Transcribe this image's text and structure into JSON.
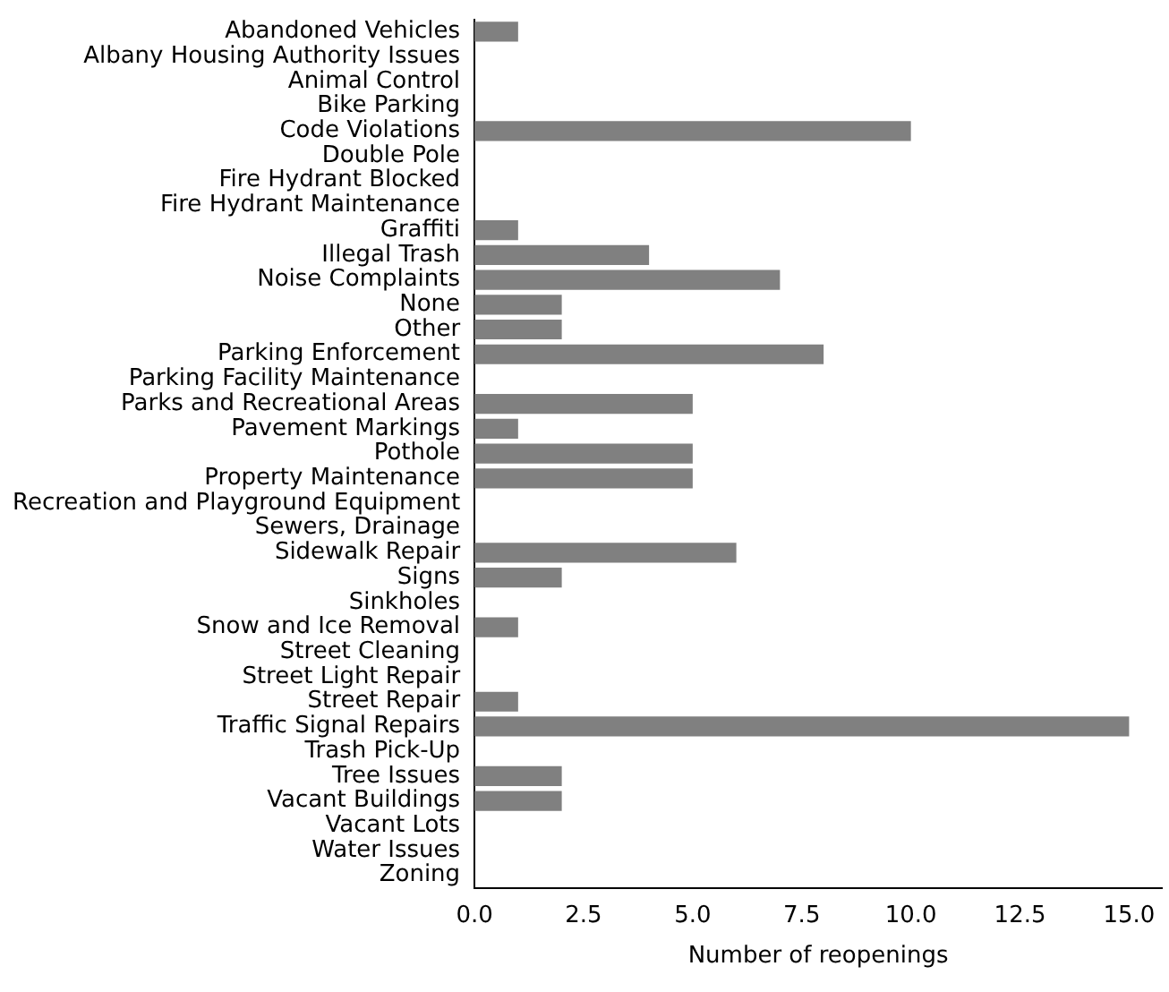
{
  "chart_data": {
    "type": "bar",
    "orientation": "horizontal",
    "xlabel": "Number of reopenings",
    "categories": [
      "Abandoned Vehicles",
      "Albany Housing Authority Issues",
      "Animal Control",
      "Bike Parking",
      "Code Violations",
      "Double Pole",
      "Fire Hydrant Blocked",
      "Fire Hydrant Maintenance",
      "Graffiti",
      "Illegal Trash",
      "Noise Complaints",
      "None",
      "Other",
      "Parking Enforcement",
      "Parking Facility Maintenance",
      "Parks and Recreational Areas",
      "Pavement Markings",
      "Pothole",
      "Property Maintenance",
      "Recreation and Playground Equipment",
      "Sewers, Drainage",
      "Sidewalk Repair",
      "Signs",
      "Sinkholes",
      "Snow and Ice Removal",
      "Street Cleaning",
      "Street Light Repair",
      "Street Repair",
      "Traffic Signal Repairs",
      "Trash Pick-Up",
      "Tree Issues",
      "Vacant Buildings",
      "Vacant Lots",
      "Water Issues",
      "Zoning"
    ],
    "values": [
      1,
      0,
      0,
      0,
      10,
      0,
      0,
      0,
      1,
      4,
      7,
      2,
      2,
      8,
      0,
      5,
      1,
      5,
      5,
      0,
      0,
      6,
      2,
      0,
      1,
      0,
      0,
      1,
      15,
      0,
      2,
      2,
      0,
      0,
      0
    ],
    "color": "#808080",
    "xlim": [
      0,
      15.75
    ],
    "xticks": [
      {
        "value": 0,
        "label": "0.0"
      },
      {
        "value": 2.5,
        "label": "2.5"
      },
      {
        "value": 5,
        "label": "5.0"
      },
      {
        "value": 7.5,
        "label": "7.5"
      },
      {
        "value": 10,
        "label": "10.0"
      },
      {
        "value": 12.5,
        "label": "12.5"
      },
      {
        "value": 15,
        "label": "15.0"
      }
    ],
    "grid": false,
    "legend": false
  }
}
